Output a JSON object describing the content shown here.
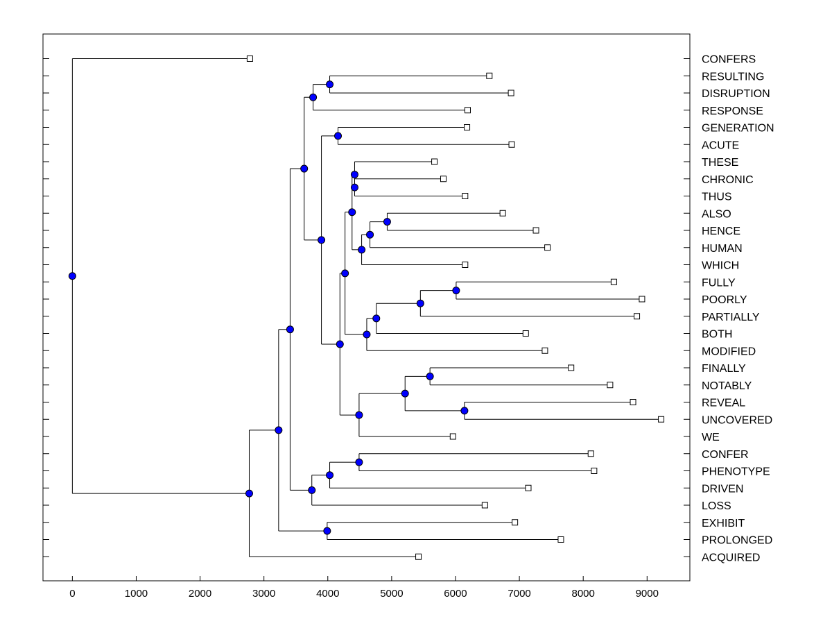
{
  "chart_data": {
    "type": "dendrogram",
    "orientation": "horizontal",
    "title": "",
    "xlabel": "",
    "ylabel": "",
    "xlim": [
      -460,
      9670
    ],
    "xticks": [
      0,
      1000,
      2000,
      3000,
      4000,
      5000,
      6000,
      7000,
      8000,
      9000
    ],
    "xtick_labels": [
      "0",
      "1000",
      "2000",
      "3000",
      "4000",
      "5000",
      "6000",
      "7000",
      "8000",
      "9000"
    ],
    "grid": false,
    "legend": "none",
    "colors": {
      "node_fill": "#0000ff",
      "leaf_marker_fill": "#ffffff",
      "line": "#000000"
    },
    "leaves": [
      {
        "label": "CONFERS",
        "value": 2780
      },
      {
        "label": "RESULTING",
        "value": 6530
      },
      {
        "label": "DISRUPTION",
        "value": 6870
      },
      {
        "label": "RESPONSE",
        "value": 6190
      },
      {
        "label": "GENERATION",
        "value": 6180
      },
      {
        "label": "ACUTE",
        "value": 6880
      },
      {
        "label": "THESE",
        "value": 5670
      },
      {
        "label": "CHRONIC",
        "value": 5810
      },
      {
        "label": "THUS",
        "value": 6150
      },
      {
        "label": "ALSO",
        "value": 6740
      },
      {
        "label": "HENCE",
        "value": 7260
      },
      {
        "label": "HUMAN",
        "value": 7440
      },
      {
        "label": "WHICH",
        "value": 6150
      },
      {
        "label": "FULLY",
        "value": 8480
      },
      {
        "label": "POORLY",
        "value": 8920
      },
      {
        "label": "PARTIALLY",
        "value": 8840
      },
      {
        "label": "BOTH",
        "value": 7100
      },
      {
        "label": "MODIFIED",
        "value": 7400
      },
      {
        "label": "FINALLY",
        "value": 7810
      },
      {
        "label": "NOTABLY",
        "value": 8420
      },
      {
        "label": "REVEAL",
        "value": 8780
      },
      {
        "label": "UNCOVERED",
        "value": 9220
      },
      {
        "label": "WE",
        "value": 5960
      },
      {
        "label": "CONFER",
        "value": 8120
      },
      {
        "label": "PHENOTYPE",
        "value": 8170
      },
      {
        "label": "DRIVEN",
        "value": 7140
      },
      {
        "label": "LOSS",
        "value": 6460
      },
      {
        "label": "EXHIBIT",
        "value": 6930
      },
      {
        "label": "PROLONGED",
        "value": 7650
      },
      {
        "label": "ACQUIRED",
        "value": 5420
      }
    ],
    "nodes": [
      {
        "id": "root",
        "value": 0,
        "children": [
          "L0",
          "N25"
        ]
      },
      {
        "id": "N25",
        "value": 2770,
        "children": [
          "N24",
          "L29"
        ]
      },
      {
        "id": "N24",
        "value": 3230,
        "children": [
          "N23",
          "N22"
        ]
      },
      {
        "id": "N22",
        "value": 3990,
        "children": [
          "L27",
          "L28"
        ]
      },
      {
        "id": "N23",
        "value": 3410,
        "children": [
          "N19",
          "N21"
        ]
      },
      {
        "id": "N21",
        "value": 3750,
        "children": [
          "N20",
          "L26"
        ]
      },
      {
        "id": "N20",
        "value": 4030,
        "children": [
          "N6",
          "L25"
        ]
      },
      {
        "id": "N6",
        "value": 4490,
        "children": [
          "L23",
          "L24"
        ]
      },
      {
        "id": "N19",
        "value": 3630,
        "children": [
          "N2",
          "N18"
        ]
      },
      {
        "id": "N2",
        "value": 3770,
        "children": [
          "N1",
          "L3"
        ]
      },
      {
        "id": "N1",
        "value": 4030,
        "children": [
          "L1",
          "L2"
        ]
      },
      {
        "id": "N18",
        "value": 3900,
        "children": [
          "N3",
          "N17"
        ]
      },
      {
        "id": "N3",
        "value": 4160,
        "children": [
          "L4",
          "L5"
        ]
      },
      {
        "id": "N17",
        "value": 4190,
        "children": [
          "N15",
          "N16"
        ]
      },
      {
        "id": "N15",
        "value": 4270,
        "children": [
          "N14",
          "N13"
        ]
      },
      {
        "id": "N14",
        "value": 4380,
        "children": [
          "N5",
          "N9"
        ]
      },
      {
        "id": "N5",
        "value": 4420,
        "children": [
          "L6",
          "N4"
        ]
      },
      {
        "id": "N4",
        "value": 4420,
        "children": [
          "L7",
          "L8"
        ]
      },
      {
        "id": "N9",
        "value": 4530,
        "children": [
          "N8",
          "L12"
        ]
      },
      {
        "id": "N8",
        "value": 4660,
        "children": [
          "N7",
          "L11"
        ]
      },
      {
        "id": "N7",
        "value": 4930,
        "children": [
          "L9",
          "L10"
        ]
      },
      {
        "id": "N13",
        "value": 4610,
        "children": [
          "N12",
          "L17"
        ]
      },
      {
        "id": "N12",
        "value": 4760,
        "children": [
          "N11",
          "L16"
        ]
      },
      {
        "id": "N11",
        "value": 5450,
        "children": [
          "N10",
          "L15"
        ]
      },
      {
        "id": "N10",
        "value": 6010,
        "children": [
          "L13",
          "L14"
        ]
      },
      {
        "id": "N16",
        "value": 4490,
        "children": [
          "N0x",
          "L22"
        ]
      },
      {
        "id": "N0x",
        "value": 5210,
        "children": [
          "Nfn",
          "Nru"
        ]
      },
      {
        "id": "Nfn",
        "value": 5600,
        "children": [
          "L18",
          "L19"
        ]
      },
      {
        "id": "Nru",
        "value": 6140,
        "children": [
          "L20",
          "L21"
        ]
      }
    ]
  }
}
